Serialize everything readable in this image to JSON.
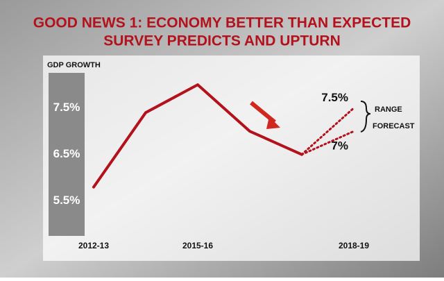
{
  "chart_data": {
    "type": "line",
    "title": "GOOD NEWS 1: ECONOMY BETTER THAN EXPECTED",
    "subtitle": "SURVEY PREDICTS AND UPTURN",
    "y_label": "GDP GROWTH",
    "categories": [
      "2012-13",
      null,
      "2015-16",
      null,
      null,
      "2018-19"
    ],
    "series": [
      {
        "name": null,
        "color": "#b3111b",
        "style": "solid",
        "values": [
          5.8,
          7.4,
          8.0,
          7.0,
          6.5,
          null
        ]
      },
      {
        "name": null,
        "color": "#b3111b",
        "style": "dotted",
        "values": [
          null,
          null,
          null,
          null,
          6.5,
          7.5
        ],
        "value_labels": [
          null,
          null,
          null,
          null,
          null,
          "7.5%"
        ]
      },
      {
        "name": null,
        "color": "#b3111b",
        "style": "dotted",
        "values": [
          null,
          null,
          null,
          null,
          6.5,
          7.0
        ],
        "value_labels": [
          null,
          null,
          null,
          null,
          null,
          "7%"
        ]
      }
    ],
    "annotation": [
      "RANGE",
      "FORECAST"
    ],
    "ylim": [
      4.75,
      8.3
    ],
    "yticks": [
      {
        "value": 5.5,
        "label": "5.5%"
      },
      {
        "value": 6.5,
        "label": "6.5%"
      },
      {
        "value": 7.5,
        "label": "7.5%"
      }
    ]
  }
}
